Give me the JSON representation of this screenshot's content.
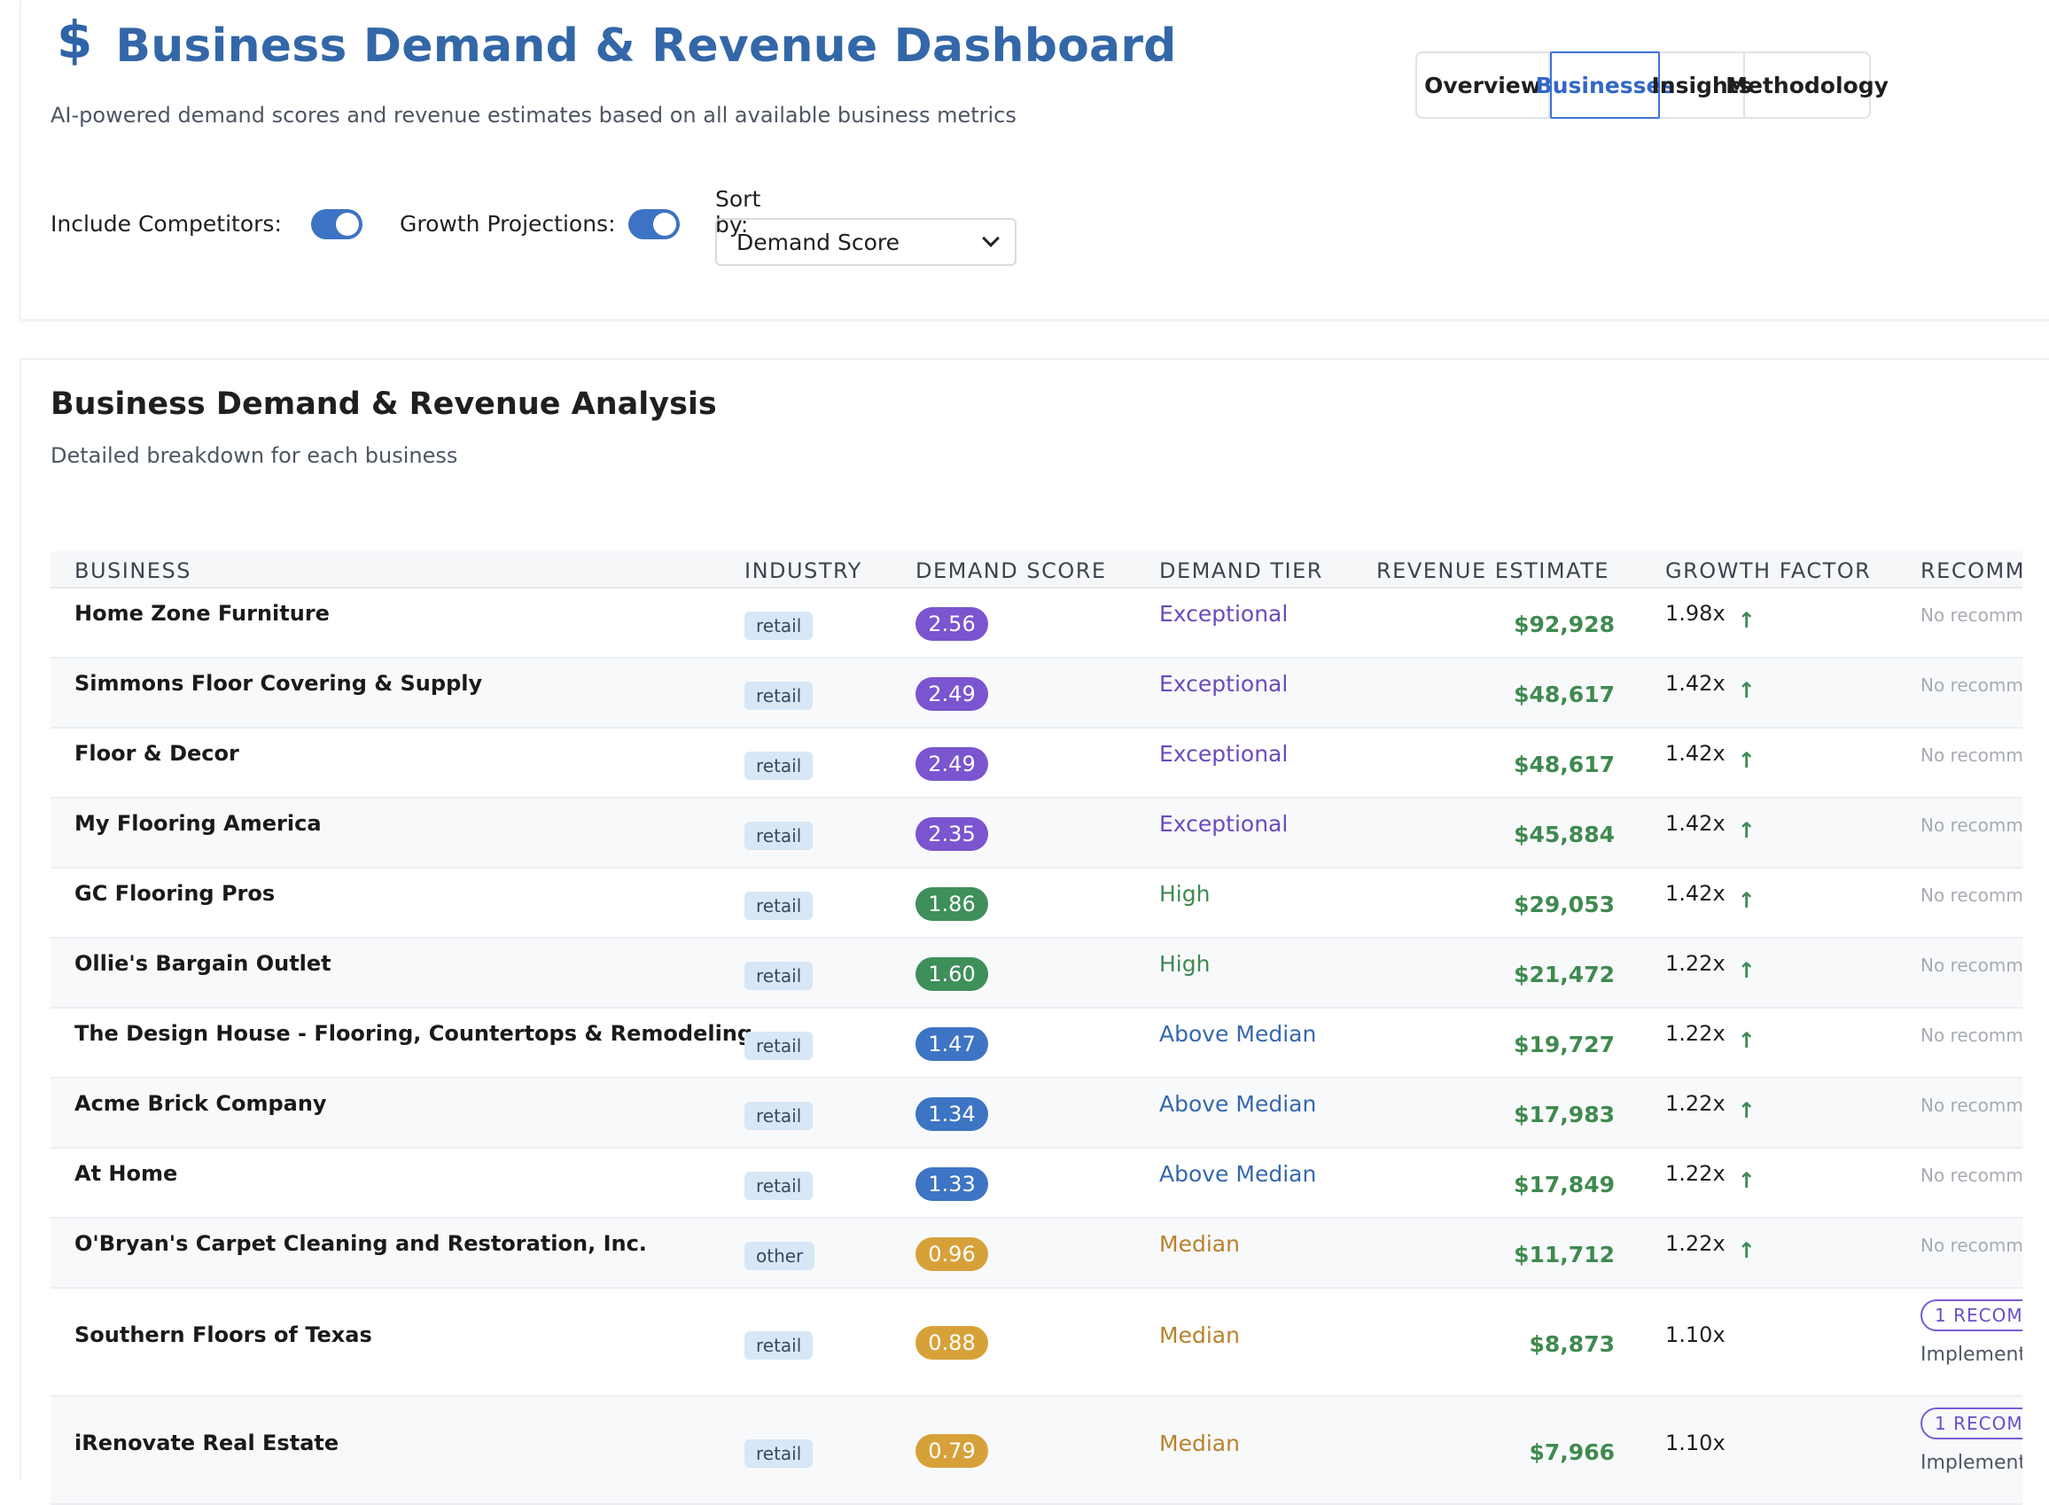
{
  "header": {
    "title": "Business Demand & Revenue Dashboard",
    "subtitle": "AI-powered demand scores and revenue estimates based on all available business metrics"
  },
  "tabs": [
    {
      "label": "Overview",
      "active": false
    },
    {
      "label": "Businesses",
      "active": true
    },
    {
      "label": "Insights",
      "active": false
    },
    {
      "label": "Methodology",
      "active": false
    }
  ],
  "controls": {
    "competitors_label": "Include Competitors:",
    "competitors_on": true,
    "growth_label": "Growth Projections:",
    "growth_on": true,
    "sort_label": "Sort by:",
    "sort_value": "Demand Score"
  },
  "section": {
    "title": "Business Demand & Revenue Analysis",
    "subtitle": "Detailed breakdown for each business"
  },
  "table": {
    "columns": [
      "BUSINESS",
      "INDUSTRY",
      "DEMAND SCORE",
      "DEMAND TIER",
      "REVENUE ESTIMATE",
      "GROWTH FACTOR",
      "RECOMM"
    ],
    "rows": [
      {
        "business": "Home Zone Furniture",
        "industry": "retail",
        "score": "2.56",
        "tier": "Exceptional",
        "revenue": "$92,928",
        "growth": "1.98x",
        "rec": "No recomm"
      },
      {
        "business": "Simmons Floor Covering & Supply",
        "industry": "retail",
        "score": "2.49",
        "tier": "Exceptional",
        "revenue": "$48,617",
        "growth": "1.42x",
        "rec": "No recomm"
      },
      {
        "business": "Floor & Decor",
        "industry": "retail",
        "score": "2.49",
        "tier": "Exceptional",
        "revenue": "$48,617",
        "growth": "1.42x",
        "rec": "No recomm"
      },
      {
        "business": "My Flooring America",
        "industry": "retail",
        "score": "2.35",
        "tier": "Exceptional",
        "revenue": "$45,884",
        "growth": "1.42x",
        "rec": "No recomm"
      },
      {
        "business": "GC Flooring Pros",
        "industry": "retail",
        "score": "1.86",
        "tier": "High",
        "revenue": "$29,053",
        "growth": "1.42x",
        "rec": "No recomm"
      },
      {
        "business": "Ollie's Bargain Outlet",
        "industry": "retail",
        "score": "1.60",
        "tier": "High",
        "revenue": "$21,472",
        "growth": "1.22x",
        "rec": "No recomm"
      },
      {
        "business": "The Design House - Flooring, Countertops & Remodeling",
        "industry": "retail",
        "score": "1.47",
        "tier": "Above Median",
        "revenue": "$19,727",
        "growth": "1.22x",
        "rec": "No recomm"
      },
      {
        "business": "Acme Brick Company",
        "industry": "retail",
        "score": "1.34",
        "tier": "Above Median",
        "revenue": "$17,983",
        "growth": "1.22x",
        "rec": "No recomm"
      },
      {
        "business": "At Home",
        "industry": "retail",
        "score": "1.33",
        "tier": "Above Median",
        "revenue": "$17,849",
        "growth": "1.22x",
        "rec": "No recomm"
      },
      {
        "business": "O'Bryan's Carpet Cleaning and Restoration, Inc.",
        "industry": "other",
        "score": "0.96",
        "tier": "Median",
        "revenue": "$11,712",
        "growth": "1.22x",
        "rec": "No recomm"
      },
      {
        "business": "Southern Floors of Texas",
        "industry": "retail",
        "score": "0.88",
        "tier": "Median",
        "revenue": "$8,873",
        "growth": "1.10x",
        "rec_badge": "1 RECOM",
        "rec_impl": "Implement"
      },
      {
        "business": "iRenovate Real Estate",
        "industry": "retail",
        "score": "0.79",
        "tier": "Median",
        "revenue": "$7,966",
        "growth": "1.10x",
        "rec_badge": "1 RECOM",
        "rec_impl": "Implement"
      }
    ]
  },
  "colors": {
    "Exceptional": {
      "badge": "#7a55cf",
      "text": "#6a4bbd"
    },
    "High": {
      "badge": "#3f8f5a",
      "text": "#3f8a52"
    },
    "Above Median": {
      "badge": "#3d74c4",
      "text": "#3568ad"
    },
    "Median": {
      "badge": "#d7a13a",
      "text": "#b9822a"
    }
  },
  "icons": {
    "title": "dollar-icon",
    "growth": "arrow-up-icon",
    "sort": "chevron-down-icon"
  }
}
